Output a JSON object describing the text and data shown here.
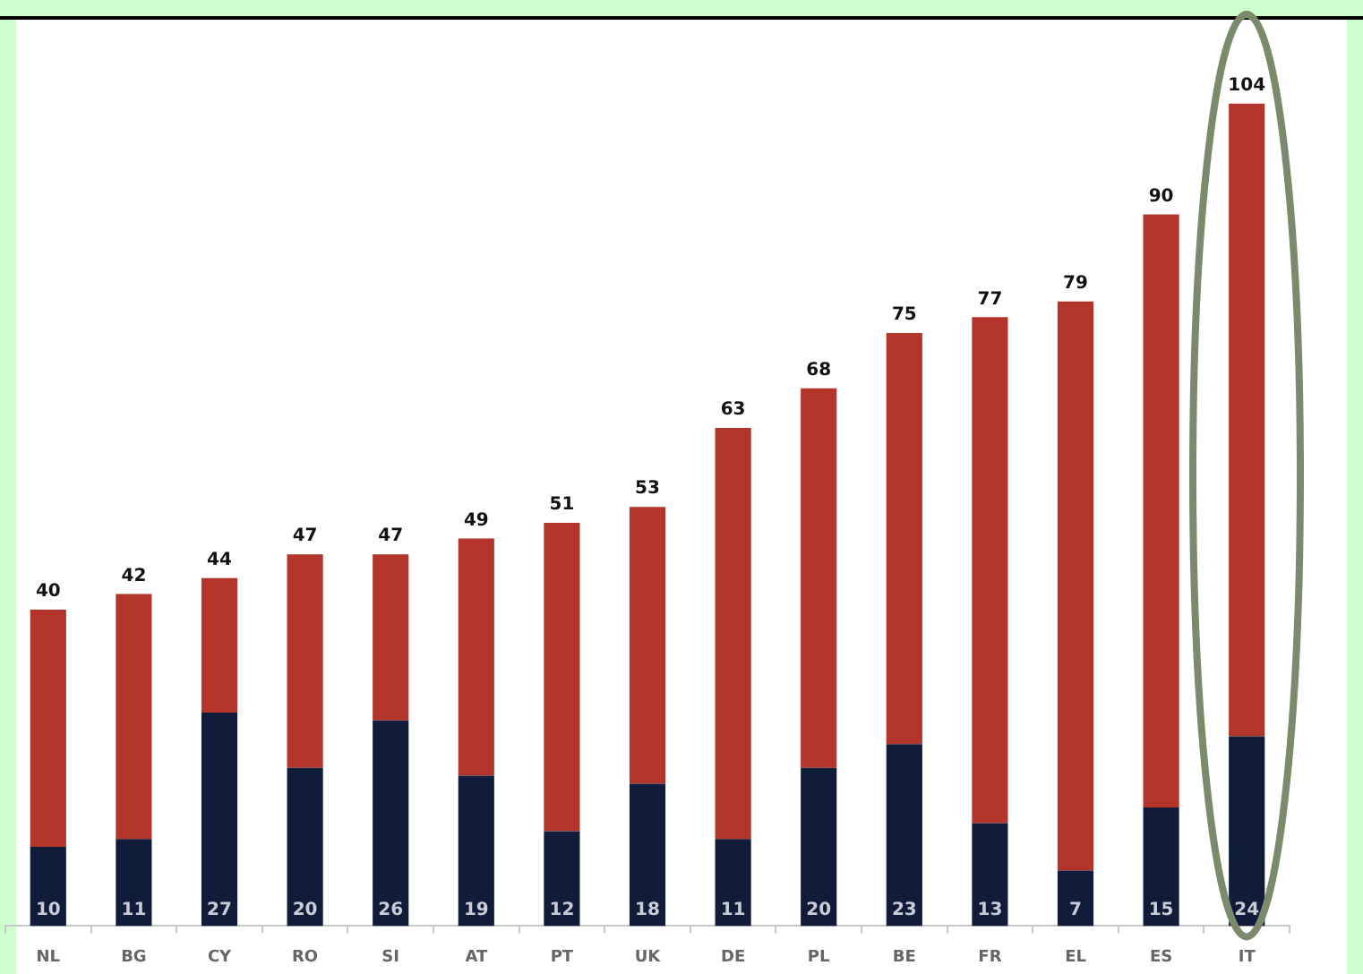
{
  "chart_data": {
    "type": "bar",
    "stacked": true,
    "categories": [
      "NL",
      "BG",
      "CY",
      "RO",
      "SI",
      "AT",
      "PT",
      "UK",
      "DE",
      "PL",
      "BE",
      "FR",
      "EL",
      "ES",
      "IT"
    ],
    "series": [
      {
        "color": "#101c3a",
        "values": [
          10,
          11,
          27,
          20,
          26,
          19,
          12,
          18,
          11,
          20,
          23,
          13,
          7,
          15,
          24
        ],
        "value_labels": [
          "10",
          "11",
          "27",
          "20",
          "26",
          "19",
          "12",
          "18",
          "11",
          "20",
          "23",
          "13",
          "7",
          "15",
          "24"
        ]
      },
      {
        "color": "#b2342a",
        "values": [
          30,
          31,
          17,
          27,
          21,
          30,
          39,
          35,
          52,
          48,
          52,
          64,
          72,
          75,
          80
        ]
      }
    ],
    "totals": [
      "40",
      "42",
      "44",
      "47",
      "47",
      "49",
      "51",
      "53",
      "63",
      "68",
      "75",
      "77",
      "79",
      "90",
      "104"
    ],
    "tick_labels": "x",
    "grid": false,
    "legend": false
  }
}
